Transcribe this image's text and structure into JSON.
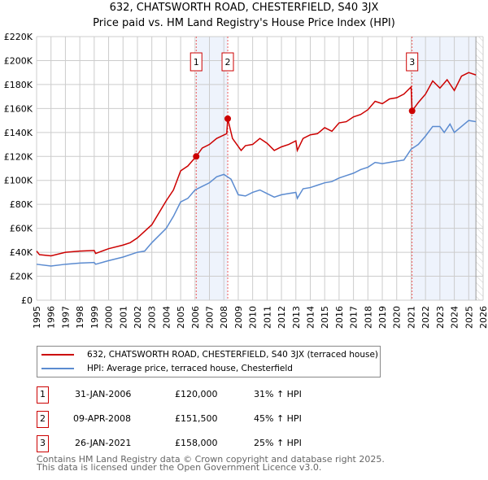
{
  "chart_data": {
    "type": "line",
    "title": "632, CHATSWORTH ROAD, CHESTERFIELD, S40 3JX",
    "subtitle": "Price paid vs. HM Land Registry's House Price Index (HPI)",
    "xlim": [
      1995,
      2026
    ],
    "ylim": [
      0,
      220000
    ],
    "x_ticks": [
      "1995",
      "1996",
      "1997",
      "1998",
      "1999",
      "2000",
      "2001",
      "2002",
      "2003",
      "2004",
      "2005",
      "2006",
      "2007",
      "2008",
      "2009",
      "2010",
      "2011",
      "2012",
      "2013",
      "2014",
      "2015",
      "2016",
      "2017",
      "2018",
      "2019",
      "2020",
      "2021",
      "2022",
      "2023",
      "2024",
      "2025",
      "2026"
    ],
    "y_ticks": [
      {
        "v": 0,
        "l": "£0"
      },
      {
        "v": 20000,
        "l": "£20K"
      },
      {
        "v": 40000,
        "l": "£40K"
      },
      {
        "v": 60000,
        "l": "£60K"
      },
      {
        "v": 80000,
        "l": "£80K"
      },
      {
        "v": 100000,
        "l": "£100K"
      },
      {
        "v": 120000,
        "l": "£120K"
      },
      {
        "v": 140000,
        "l": "£140K"
      },
      {
        "v": 160000,
        "l": "£160K"
      },
      {
        "v": 180000,
        "l": "£180K"
      },
      {
        "v": 200000,
        "l": "£200K"
      },
      {
        "v": 220000,
        "l": "£220K"
      }
    ],
    "grid": true,
    "shaded_ranges": [
      [
        2006.08,
        2008.27
      ],
      [
        2021.07,
        2025.5
      ]
    ],
    "hatched_from": 2025.5,
    "series": [
      {
        "name": "632, CHATSWORTH ROAD, CHESTERFIELD, S40 3JX (terraced house)",
        "color": "#cc0000",
        "points": [
          [
            1995,
            41
          ],
          [
            1995.2,
            38
          ],
          [
            1996,
            37
          ],
          [
            1997,
            40
          ],
          [
            1998,
            41
          ],
          [
            1999,
            41.5
          ],
          [
            1999.1,
            39
          ],
          [
            2000,
            43
          ],
          [
            2001,
            46
          ],
          [
            2001.5,
            48
          ],
          [
            2002,
            52
          ],
          [
            2003,
            63
          ],
          [
            2004,
            83
          ],
          [
            2004.5,
            92
          ],
          [
            2005,
            108
          ],
          [
            2005.5,
            112
          ],
          [
            2006.08,
            120
          ],
          [
            2006.5,
            127
          ],
          [
            2007,
            130
          ],
          [
            2007.5,
            135
          ],
          [
            2008.2,
            139
          ],
          [
            2008.27,
            151.5
          ],
          [
            2008.6,
            135
          ],
          [
            2009.2,
            125
          ],
          [
            2009.5,
            129
          ],
          [
            2010,
            130
          ],
          [
            2010.5,
            135
          ],
          [
            2011,
            131
          ],
          [
            2011.5,
            125
          ],
          [
            2012,
            128
          ],
          [
            2012.5,
            130
          ],
          [
            2013,
            133
          ],
          [
            2013.1,
            125
          ],
          [
            2013.5,
            135
          ],
          [
            2014,
            138
          ],
          [
            2014.5,
            139
          ],
          [
            2015,
            144
          ],
          [
            2015.5,
            141
          ],
          [
            2016,
            148
          ],
          [
            2016.5,
            149
          ],
          [
            2017,
            153
          ],
          [
            2017.5,
            155
          ],
          [
            2018,
            159
          ],
          [
            2018.5,
            166
          ],
          [
            2019,
            164
          ],
          [
            2019.5,
            168
          ],
          [
            2020,
            169
          ],
          [
            2020.5,
            172
          ],
          [
            2021.0,
            178
          ],
          [
            2021.07,
            158
          ],
          [
            2021.5,
            165
          ],
          [
            2022,
            172
          ],
          [
            2022.5,
            183
          ],
          [
            2023,
            177
          ],
          [
            2023.5,
            184
          ],
          [
            2024,
            175
          ],
          [
            2024.5,
            187
          ],
          [
            2025,
            190
          ],
          [
            2025.5,
            188
          ]
        ]
      },
      {
        "name": "HPI: Average price, terraced house, Chesterfield",
        "color": "#5b8bd0",
        "points": [
          [
            1995,
            30
          ],
          [
            1996,
            28.5
          ],
          [
            1997,
            30
          ],
          [
            1998,
            31
          ],
          [
            1999,
            31.5
          ],
          [
            1999.1,
            30
          ],
          [
            2000,
            33
          ],
          [
            2001,
            36
          ],
          [
            2002,
            40
          ],
          [
            2002.5,
            41
          ],
          [
            2003,
            48
          ],
          [
            2004,
            60
          ],
          [
            2004.5,
            70
          ],
          [
            2005,
            82
          ],
          [
            2005.5,
            85
          ],
          [
            2006,
            92
          ],
          [
            2006.5,
            95
          ],
          [
            2007,
            98
          ],
          [
            2007.5,
            103
          ],
          [
            2008,
            105
          ],
          [
            2008.5,
            101
          ],
          [
            2009,
            88
          ],
          [
            2009.5,
            87
          ],
          [
            2010,
            90
          ],
          [
            2010.5,
            92
          ],
          [
            2011,
            89
          ],
          [
            2011.5,
            86
          ],
          [
            2012,
            88
          ],
          [
            2012.5,
            89
          ],
          [
            2013,
            90
          ],
          [
            2013.1,
            85
          ],
          [
            2013.5,
            93
          ],
          [
            2014,
            94
          ],
          [
            2014.5,
            96
          ],
          [
            2015,
            98
          ],
          [
            2015.5,
            99
          ],
          [
            2016,
            102
          ],
          [
            2016.5,
            104
          ],
          [
            2017,
            106
          ],
          [
            2017.5,
            109
          ],
          [
            2018,
            111
          ],
          [
            2018.5,
            115
          ],
          [
            2019,
            114
          ],
          [
            2019.5,
            115
          ],
          [
            2020,
            116
          ],
          [
            2020.5,
            117
          ],
          [
            2021,
            126
          ],
          [
            2021.5,
            130
          ],
          [
            2022,
            137
          ],
          [
            2022.5,
            145
          ],
          [
            2023,
            145
          ],
          [
            2023.3,
            140
          ],
          [
            2023.7,
            147
          ],
          [
            2024,
            140
          ],
          [
            2024.5,
            145
          ],
          [
            2025,
            150
          ],
          [
            2025.5,
            149
          ]
        ]
      }
    ],
    "sales": [
      {
        "n": "1",
        "x": 2006.08,
        "y": 120
      },
      {
        "n": "2",
        "x": 2008.27,
        "y": 151.5
      },
      {
        "n": "3",
        "x": 2021.07,
        "y": 158
      }
    ]
  },
  "legend": {
    "red": "632, CHATSWORTH ROAD, CHESTERFIELD, S40 3JX (terraced house)",
    "blue": "HPI: Average price, terraced house, Chesterfield"
  },
  "table": [
    {
      "n": "1",
      "date": "31-JAN-2006",
      "price": "£120,000",
      "hpi": "31% ↑ HPI"
    },
    {
      "n": "2",
      "date": "09-APR-2008",
      "price": "£151,500",
      "hpi": "45% ↑ HPI"
    },
    {
      "n": "3",
      "date": "26-JAN-2021",
      "price": "£158,000",
      "hpi": "25% ↑ HPI"
    }
  ],
  "footer": {
    "line1": "Contains HM Land Registry data © Crown copyright and database right 2025.",
    "line2": "This data is licensed under the Open Government Licence v3.0."
  }
}
